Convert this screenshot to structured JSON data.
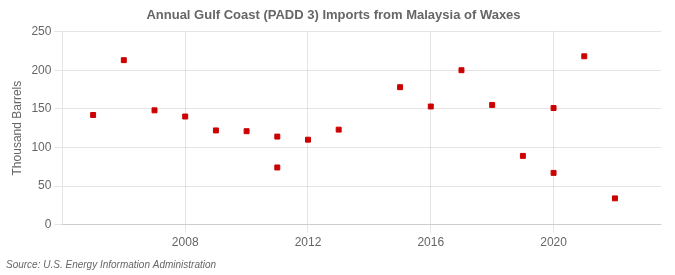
{
  "chart_data": {
    "type": "scatter",
    "title": "Annual Gulf Coast (PADD 3) Imports from Malaysia of Waxes",
    "ylabel": "Thousand Barrels",
    "annotations": [
      "Source: U.S. Energy Information Administration"
    ],
    "x": [
      2005,
      2006,
      2007,
      2008,
      2009,
      2010,
      2011,
      2011,
      2012,
      2013,
      2015,
      2016,
      2017,
      2018,
      2019,
      2020,
      2020,
      2021,
      2022
    ],
    "values": [
      142,
      213,
      148,
      140,
      122,
      121,
      74,
      114,
      110,
      123,
      178,
      153,
      200,
      155,
      89,
      67,
      151,
      218,
      34
    ],
    "color": "#cc0000",
    "marker": "square",
    "xlim": [
      2004,
      2023.5
    ],
    "ylim": [
      0,
      250
    ],
    "xticks": [
      2008,
      2012,
      2016,
      2020
    ],
    "yticks": [
      0,
      50,
      100,
      150,
      200,
      250
    ],
    "grid": true
  }
}
